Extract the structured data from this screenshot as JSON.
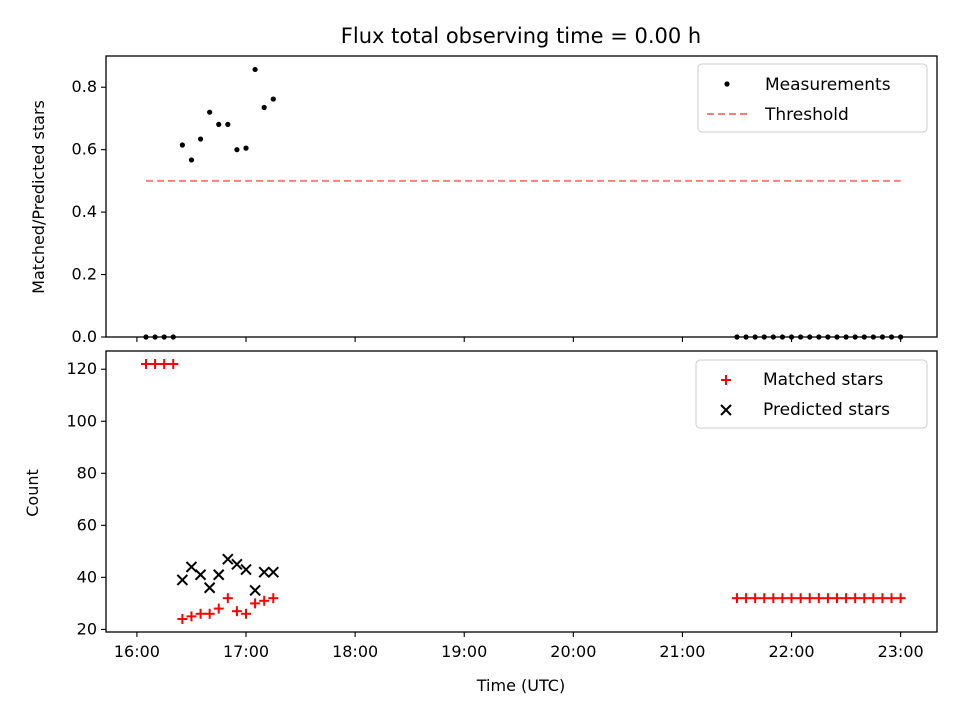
{
  "chart_data": [
    {
      "type": "scatter",
      "title": "Flux total observing time = 0.00 h",
      "xlabel": "",
      "ylabel": "Matched/Predicted stars",
      "xlim": [
        "15:43",
        "23:20"
      ],
      "ylim": [
        0,
        0.9
      ],
      "yticks": [
        0.0,
        0.2,
        0.4,
        0.6,
        0.8
      ],
      "yticklabels": [
        "0.0",
        "0.2",
        "0.4",
        "0.6",
        "0.8"
      ],
      "legend_position": "top-right",
      "legend": [
        "Measurements",
        "Threshold"
      ],
      "series": [
        {
          "name": "Measurements",
          "marker": "dot",
          "color": "#000000",
          "x": [
            "16:05",
            "16:10",
            "16:15",
            "16:20",
            "16:25",
            "16:30",
            "16:35",
            "16:40",
            "16:45",
            "16:50",
            "16:55",
            "17:00",
            "17:05",
            "17:10",
            "17:15",
            "21:30",
            "21:35",
            "21:40",
            "21:45",
            "21:50",
            "21:55",
            "22:00",
            "22:05",
            "22:10",
            "22:15",
            "22:20",
            "22:25",
            "22:30",
            "22:35",
            "22:40",
            "22:45",
            "22:50",
            "22:55",
            "23:00"
          ],
          "y": [
            0,
            0,
            0,
            0,
            0.615,
            0.567,
            0.634,
            0.72,
            0.681,
            0.681,
            0.6,
            0.605,
            0.857,
            0.735,
            0.762,
            0,
            0,
            0,
            0,
            0,
            0,
            0,
            0,
            0,
            0,
            0,
            0,
            0,
            0,
            0,
            0,
            0,
            0,
            0
          ]
        },
        {
          "name": "Threshold",
          "marker": "dashed-line",
          "color": "#ff7f7f",
          "x": [
            "16:05",
            "23:00"
          ],
          "y": [
            0.5,
            0.5
          ]
        }
      ]
    },
    {
      "type": "scatter",
      "title": "",
      "xlabel": "Time (UTC)",
      "ylabel": "Count",
      "xlim": [
        "15:43",
        "23:20"
      ],
      "ylim": [
        19,
        127
      ],
      "yticks": [
        20,
        40,
        60,
        80,
        100,
        120
      ],
      "yticklabels": [
        "20",
        "40",
        "60",
        "80",
        "100",
        "120"
      ],
      "xticks": [
        "16:00",
        "17:00",
        "18:00",
        "19:00",
        "20:00",
        "21:00",
        "22:00",
        "23:00"
      ],
      "xticklabels": [
        "16:00",
        "17:00",
        "18:00",
        "19:00",
        "20:00",
        "21:00",
        "22:00",
        "23:00"
      ],
      "legend_position": "top-right",
      "legend": [
        "Matched stars",
        "Predicted stars"
      ],
      "series": [
        {
          "name": "Matched stars",
          "marker": "plus",
          "color": "#ff0000",
          "x": [
            "16:05",
            "16:10",
            "16:15",
            "16:20",
            "16:25",
            "16:30",
            "16:35",
            "16:40",
            "16:45",
            "16:50",
            "16:55",
            "17:00",
            "17:05",
            "17:10",
            "17:15",
            "21:30",
            "21:35",
            "21:40",
            "21:45",
            "21:50",
            "21:55",
            "22:00",
            "22:05",
            "22:10",
            "22:15",
            "22:20",
            "22:25",
            "22:30",
            "22:35",
            "22:40",
            "22:45",
            "22:50",
            "22:55",
            "23:00"
          ],
          "y": [
            122,
            122,
            122,
            122,
            24,
            25,
            26,
            26,
            28,
            32,
            27,
            26,
            30,
            31,
            32,
            32,
            32,
            32,
            32,
            32,
            32,
            32,
            32,
            32,
            32,
            32,
            32,
            32,
            32,
            32,
            32,
            32,
            32,
            32
          ]
        },
        {
          "name": "Predicted stars",
          "marker": "x",
          "color": "#000000",
          "x": [
            "16:25",
            "16:30",
            "16:35",
            "16:40",
            "16:45",
            "16:50",
            "16:55",
            "17:00",
            "17:05",
            "17:10",
            "17:15"
          ],
          "y": [
            39,
            44,
            41,
            36,
            41,
            47,
            45,
            43,
            35,
            42,
            42
          ]
        }
      ]
    }
  ]
}
